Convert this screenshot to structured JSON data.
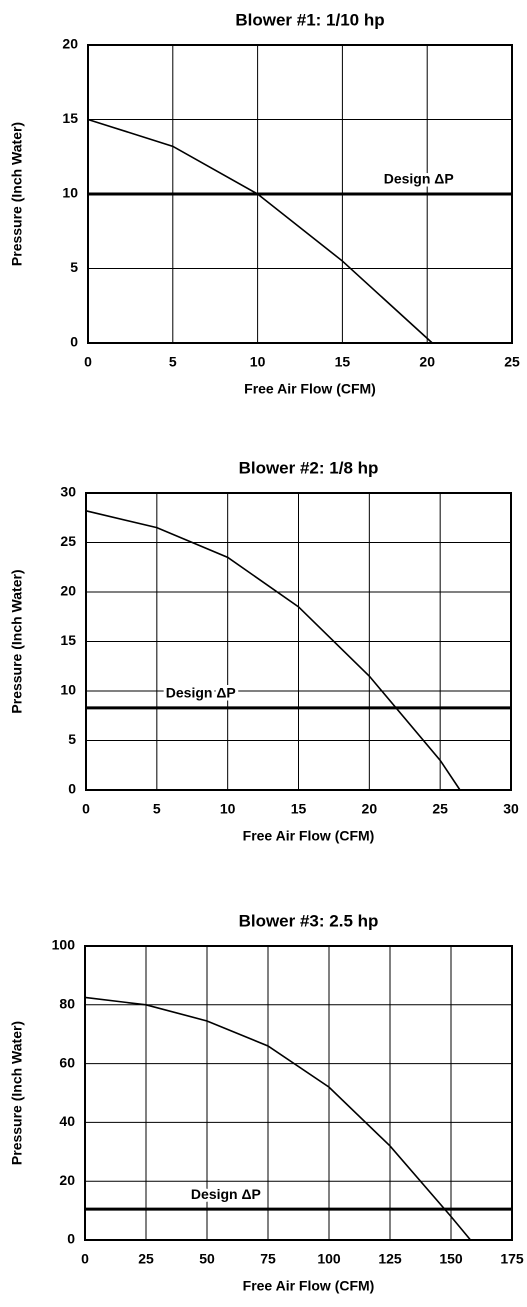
{
  "chart_data": [
    {
      "type": "line",
      "title": "Blower #1:  1/10 hp",
      "x_label": "Free Air Flow (CFM)",
      "y_label": "Pressure (Inch Water)",
      "xlim": [
        0,
        25
      ],
      "xticks": [
        0,
        5,
        10,
        15,
        20,
        25
      ],
      "ylim": [
        0,
        20
      ],
      "yticks": [
        0,
        5,
        10,
        15,
        20
      ],
      "grid": true,
      "series": [
        {
          "color": "#000000",
          "x": [
            0,
            5,
            10,
            15,
            20.3
          ],
          "values": [
            15,
            13.2,
            10,
            5.5,
            0
          ]
        }
      ],
      "reference_lines": [
        {
          "value": 10,
          "label": "Design ΔP",
          "color": "#000000"
        }
      ]
    },
    {
      "type": "line",
      "title": "Blower #2:  1/8 hp",
      "x_label": "Free Air Flow (CFM)",
      "y_label": "Pressure (Inch Water)",
      "xlim": [
        0,
        30
      ],
      "xticks": [
        0,
        5,
        10,
        15,
        20,
        25,
        30
      ],
      "ylim": [
        0,
        30
      ],
      "yticks": [
        0,
        5,
        10,
        15,
        20,
        25,
        30
      ],
      "grid": true,
      "series": [
        {
          "color": "#000000",
          "x": [
            0,
            5,
            10,
            15,
            20,
            25,
            26.4
          ],
          "values": [
            28.2,
            26.5,
            23.5,
            18.5,
            11.5,
            3,
            0
          ]
        }
      ],
      "reference_lines": [
        {
          "value": 8.3,
          "label": "Design ΔP",
          "color": "#000000"
        }
      ]
    },
    {
      "type": "line",
      "title": "Blower #3:  2.5 hp",
      "x_label": "Free Air Flow (CFM)",
      "y_label": "Pressure (Inch Water)",
      "xlim": [
        0,
        175
      ],
      "xticks": [
        0,
        25,
        50,
        75,
        100,
        125,
        150,
        175
      ],
      "ylim": [
        0,
        100
      ],
      "yticks": [
        0,
        20,
        40,
        60,
        80,
        100
      ],
      "grid": true,
      "series": [
        {
          "color": "#000000",
          "x": [
            0,
            25,
            50,
            75,
            100,
            125,
            150,
            158
          ],
          "values": [
            82.5,
            80,
            74.5,
            66,
            52,
            32,
            8,
            0
          ]
        }
      ],
      "reference_lines": [
        {
          "value": 10.5,
          "label": "Design ΔP",
          "color": "#000000"
        }
      ]
    }
  ]
}
